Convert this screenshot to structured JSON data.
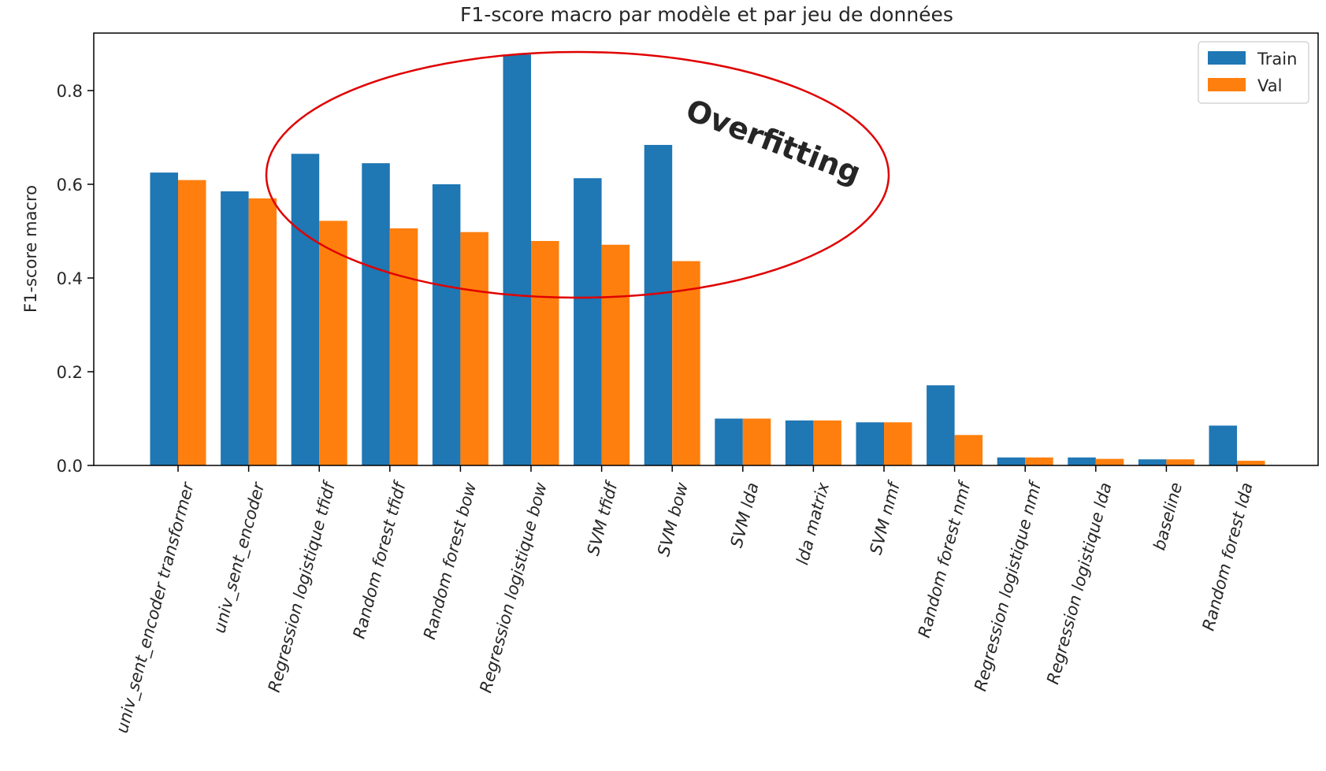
{
  "chart_data": {
    "type": "bar",
    "title": "F1-score macro par modèle et par jeu de données",
    "xlabel": "",
    "ylabel": "F1-score macro",
    "ylim": [
      0,
      0.925
    ],
    "yticks": [
      "0.0",
      "0.2",
      "0.4",
      "0.6",
      "0.8"
    ],
    "grid": false,
    "legend_position": "top-right",
    "categories": [
      "univ_sent_encoder transformer",
      "univ_sent_encoder",
      "Regression logistique tfidf",
      "Random forest tfidf",
      "Random forest bow",
      "Regression logistique bow",
      "SVM tfidf",
      "SVM bow",
      "SVM lda",
      "lda matrix",
      "SVM nmf",
      "Random forest nmf",
      "Regression logistique nmf",
      "Regression logistique lda",
      "baseline",
      "Random forest lda"
    ],
    "series": [
      {
        "name": "Train",
        "color": "#1f77b4",
        "values": [
          0.625,
          0.585,
          0.665,
          0.645,
          0.6,
          0.877,
          0.613,
          0.684,
          0.1,
          0.096,
          0.092,
          0.171,
          0.017,
          0.017,
          0.013,
          0.085
        ]
      },
      {
        "name": "Val",
        "color": "#ff7f0e",
        "values": [
          0.609,
          0.57,
          0.522,
          0.506,
          0.498,
          0.479,
          0.471,
          0.436,
          0.1,
          0.096,
          0.092,
          0.065,
          0.017,
          0.014,
          0.013,
          0.01
        ]
      }
    ],
    "annotations": [
      {
        "text": "Overfitting",
        "color": "#c00000",
        "shape": "ellipse"
      }
    ]
  }
}
